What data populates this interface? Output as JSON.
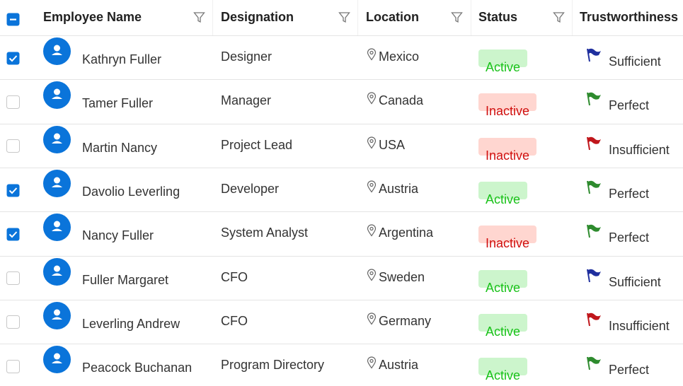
{
  "columns": [
    "Employee Name",
    "Designation",
    "Location",
    "Status",
    "Trustworthiness"
  ],
  "rows": [
    {
      "name": "Kathryn Fuller",
      "designation": "Designer",
      "location": "Mexico",
      "status": "Active",
      "active": true,
      "trust": "Sufficient",
      "flag_color": "#1f2f9e",
      "selected": true
    },
    {
      "name": "Tamer Fuller",
      "designation": "Manager",
      "location": "Canada",
      "status": "Inactive",
      "active": false,
      "trust": "Perfect",
      "flag_color": "#2e8b2e",
      "selected": false
    },
    {
      "name": "Martin Nancy",
      "designation": "Project Lead",
      "location": "USA",
      "status": "Inactive",
      "active": false,
      "trust": "Insufficient",
      "flag_color": "#c0161b",
      "selected": false
    },
    {
      "name": "Davolio Leverling",
      "designation": "Developer",
      "location": "Austria",
      "status": "Active",
      "active": true,
      "trust": "Perfect",
      "flag_color": "#2e8b2e",
      "selected": true
    },
    {
      "name": "Nancy Fuller",
      "designation": "System Analyst",
      "location": "Argentina",
      "status": "Inactive",
      "active": false,
      "trust": "Perfect",
      "flag_color": "#2e8b2e",
      "selected": true
    },
    {
      "name": "Fuller Margaret",
      "designation": "CFO",
      "location": "Sweden",
      "status": "Active",
      "active": true,
      "trust": "Sufficient",
      "flag_color": "#1f2f9e",
      "selected": false
    },
    {
      "name": "Leverling Andrew",
      "designation": "CFO",
      "location": "Germany",
      "status": "Active",
      "active": true,
      "trust": "Insufficient",
      "flag_color": "#c0161b",
      "selected": false
    },
    {
      "name": "Peacock Buchanan",
      "designation": "Program Directory",
      "location": "Austria",
      "status": "Active",
      "active": true,
      "trust": "Perfect",
      "flag_color": "#2e8b2e",
      "selected": false
    }
  ]
}
